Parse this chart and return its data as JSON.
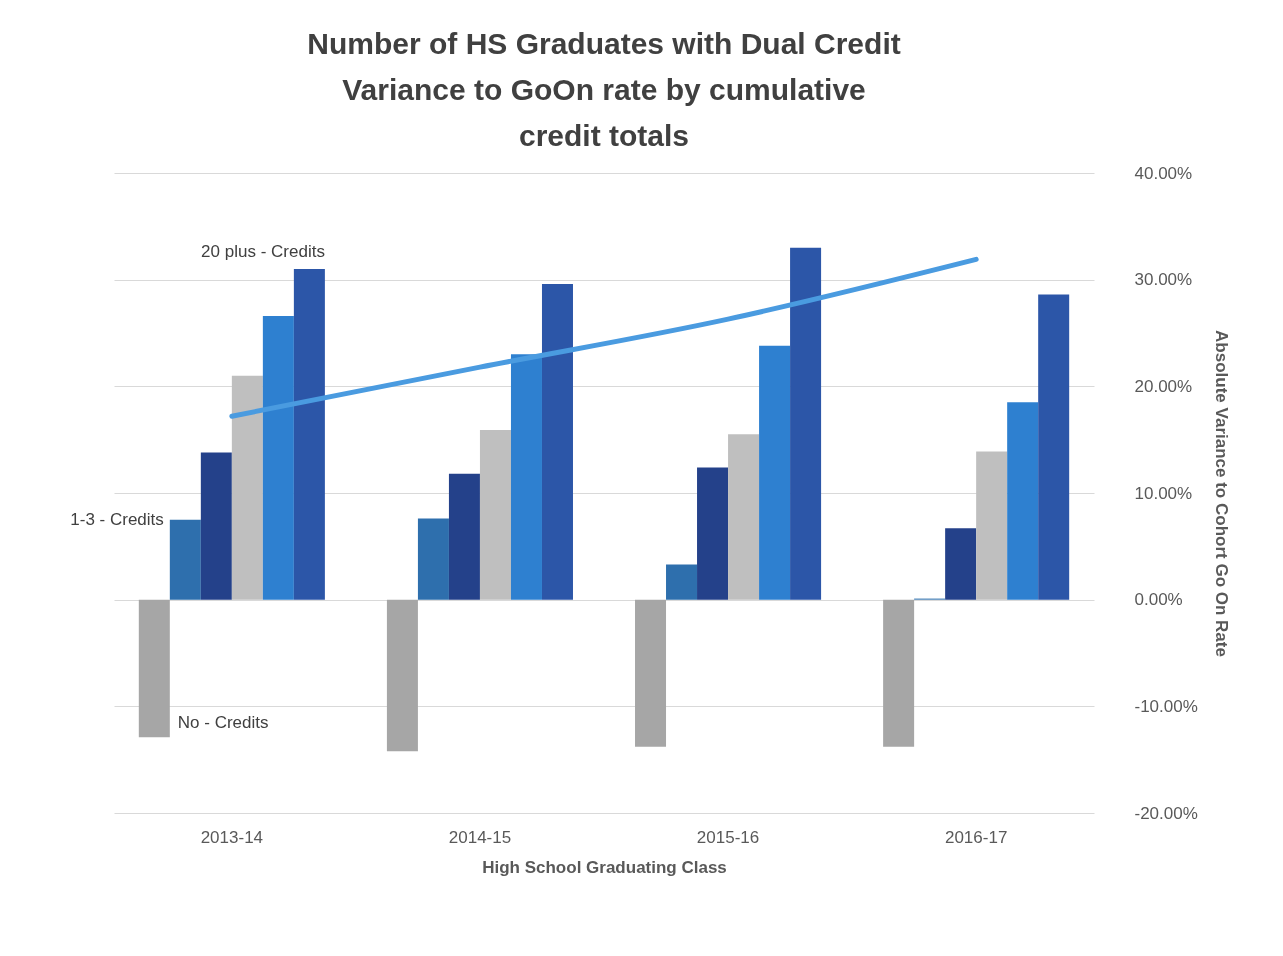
{
  "chart_data": {
    "type": "bar",
    "title": "Number of HS Graduates with Dual Credit Variance to GoOn rate by cumulative credit totals",
    "xlabel": "High School Graduating Class",
    "ylabel": "Absolute Variance to Cohort Go On Rate",
    "categories": [
      "2013-14",
      "2014-15",
      "2015-16",
      "2016-17"
    ],
    "series": [
      {
        "name": "No - Credits",
        "color": "#a6a6a6",
        "values": [
          -12.9,
          -14.2,
          -13.8,
          -13.8
        ]
      },
      {
        "name": "1-3 - Credits",
        "color": "#2e6fad",
        "values": [
          7.5,
          7.6,
          3.3,
          0.1
        ]
      },
      {
        "color": "#24418a",
        "values": [
          13.8,
          11.8,
          12.4,
          6.7
        ]
      },
      {
        "color": "#bfbfbf",
        "values": [
          21.0,
          15.9,
          15.5,
          13.9
        ]
      },
      {
        "color": "#2e80d0",
        "values": [
          26.6,
          23.0,
          23.8,
          18.5
        ]
      },
      {
        "name": "20 plus - Credits",
        "color": "#2c56a8",
        "values": [
          31.0,
          29.6,
          33.0,
          28.6
        ]
      },
      {
        "type": "line",
        "color": "#4a9be0",
        "values": [
          17.2,
          21.8,
          26.3,
          31.9
        ]
      }
    ],
    "ylim": [
      -20,
      40
    ],
    "yticks": [
      {
        "value": -20,
        "label": "-20.00%"
      },
      {
        "value": -10,
        "label": "-10.00%"
      },
      {
        "value": 0,
        "label": "0.00%"
      },
      {
        "value": 10,
        "label": "10.00%"
      },
      {
        "value": 20,
        "label": "20.00%"
      },
      {
        "value": 30,
        "label": "30.00%"
      },
      {
        "value": 40,
        "label": "40.00%"
      }
    ],
    "grid": true
  }
}
